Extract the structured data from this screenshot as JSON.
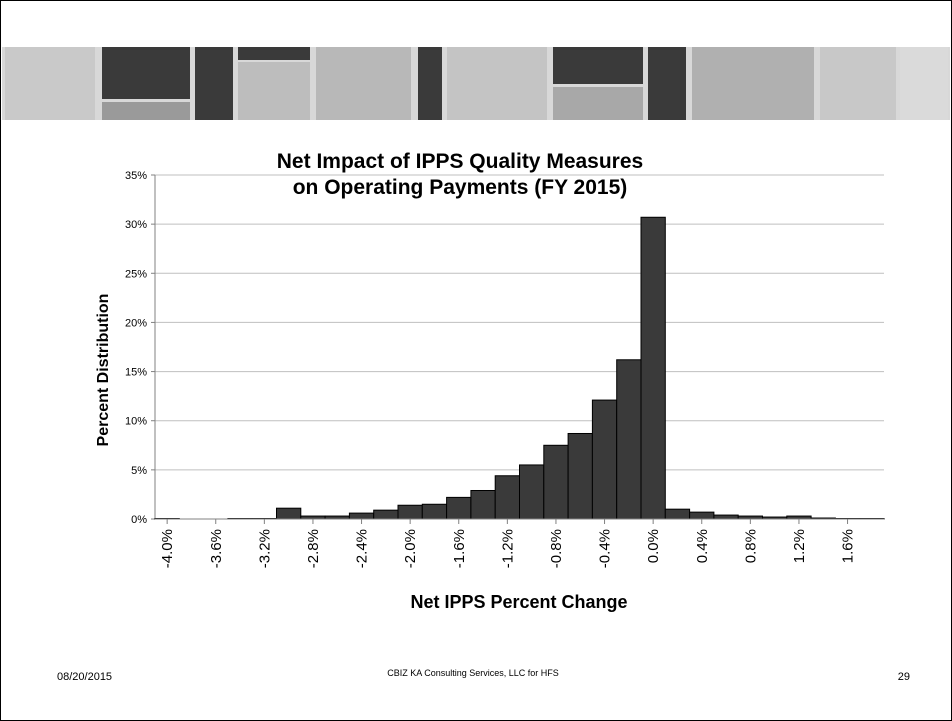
{
  "chart_data": {
    "type": "bar",
    "title": [
      "Net Impact of IPPS Quality Measures",
      "on Operating Payments (FY 2015)"
    ],
    "x_label": "Net IPPS Percent Change",
    "y_label": "Percent Distribution",
    "categories": [
      "-4.0%",
      null,
      "-3.6%",
      null,
      "-3.2%",
      null,
      "-2.8%",
      null,
      "-2.4%",
      null,
      "-2.0%",
      null,
      "-1.6%",
      null,
      "-1.2%",
      null,
      "-0.8%",
      null,
      "-0.4%",
      null,
      "0.0%",
      null,
      "0.4%",
      null,
      "0.8%",
      null,
      "1.2%",
      null,
      "1.6%",
      null
    ],
    "values": [
      0.05,
      0,
      0,
      0.05,
      0.05,
      1.1,
      0.3,
      0.3,
      0.6,
      0.9,
      1.4,
      1.5,
      2.2,
      2.9,
      4.4,
      5.5,
      7.5,
      8.7,
      12.1,
      16.2,
      30.7,
      1.0,
      0.7,
      0.4,
      0.3,
      0.2,
      0.3,
      0.1,
      0.05,
      0.05
    ],
    "color": "#3a3a3a",
    "ylim": [
      0,
      35
    ],
    "yticks": [
      {
        "value": 0,
        "label": "0%"
      },
      {
        "value": 5,
        "label": "5%"
      },
      {
        "value": 10,
        "label": "10%"
      },
      {
        "value": 15,
        "label": "15%"
      },
      {
        "value": 20,
        "label": "20%"
      },
      {
        "value": 25,
        "label": "25%"
      },
      {
        "value": 30,
        "label": "30%"
      },
      {
        "value": 35,
        "label": "35%"
      }
    ],
    "grid": true
  },
  "footer": {
    "date": "08/20/2015",
    "source": "CBIZ KA Consulting Services, LLC for HFS",
    "page": "29"
  }
}
